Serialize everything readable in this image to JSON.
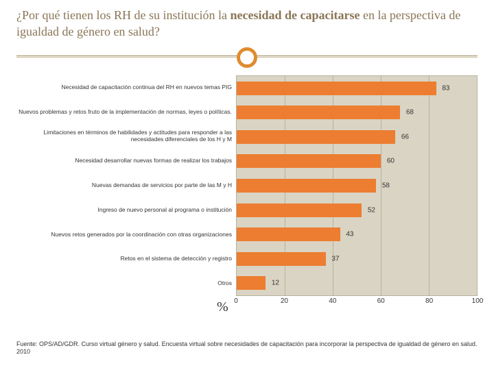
{
  "title": {
    "part1": "¿Por qué tienen los RH de su institución la ",
    "bold1": "necesidad de capacitarse",
    "part2": " en la perspectiva de igualdad de género en salud?"
  },
  "chart": {
    "type": "bar-horizontal",
    "categories": [
      "Necesidad de capacitación continua del RH en nuevos temas PIG",
      "Nuevos problemas y retos fruto de la implementación de normas, leyes o políticas.",
      "Limitaciones en términos de habilidades y actitudes para responder a las necesidades diferenciales de los H y M",
      "Necesidad desarrollar nuevas formas de realizar los trabajos",
      "Nuevas demandas de servicios por parte de las M y H",
      "Ingreso de nuevo personal al programa o institución",
      "Nuevos retos generados por la coordinación con otras organizaciones",
      "Retos en el sistema de detección y registro",
      "Otros"
    ],
    "values": [
      83,
      68,
      66,
      60,
      58,
      52,
      43,
      37,
      12
    ],
    "bar_color": "#ed7d31",
    "plot_bg": "#dad4c4",
    "grid_color": "#b7b19f",
    "xlim": [
      0,
      100
    ],
    "xtick_step": 20,
    "xticks": [
      0,
      20,
      40,
      60,
      80,
      100
    ],
    "label_fontsize": 8.5,
    "value_fontsize": 10,
    "tick_fontsize": 10,
    "row_height_pct": 11.11,
    "bar_height_pct": 6.2,
    "percent_symbol": "%"
  },
  "source": "Fuente: OPS/AD/GDR. Curso virtual género y salud. Encuesta virtual sobre necesidades de capacitación para incorporar la perspectiva de igualdad de género en salud. 2010",
  "colors": {
    "title_text": "#8a7556",
    "ring": "#e08b2e",
    "rule": "#9e8a61",
    "background": "#ffffff"
  }
}
